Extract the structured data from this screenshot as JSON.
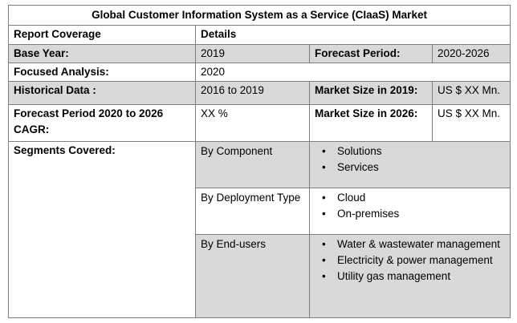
{
  "table": {
    "title": "Global Customer Information System as a Service (CIaaS) Market",
    "header": {
      "col1": "Report Coverage",
      "col2": "Details"
    },
    "rows": {
      "base_year": {
        "label": "Base Year:",
        "value": "2019",
        "label2": "Forecast Period:",
        "value2": "2020-2026"
      },
      "focused_analysis": {
        "label": "Focused Analysis:",
        "value": "2020"
      },
      "historical_data": {
        "label": "Historical Data :",
        "value": "2016 to 2019",
        "label2": "Market Size in 2019:",
        "value2": "US $ XX Mn."
      },
      "forecast_cagr": {
        "label": "Forecast Period 2020 to 2026 CAGR:",
        "value": "XX %",
        "label2": "Market Size in 2026:",
        "value2": "US $ XX Mn."
      }
    },
    "segments": {
      "label": "Segments Covered:",
      "groups": [
        {
          "name": "By Component",
          "items": [
            "Solutions",
            "Services"
          ]
        },
        {
          "name": "By Deployment Type",
          "items": [
            "Cloud",
            "On-premises"
          ]
        },
        {
          "name": "By End-users",
          "items": [
            "Water & wastewater management",
            "Electricity & power management",
            "Utility gas management"
          ]
        }
      ]
    }
  }
}
